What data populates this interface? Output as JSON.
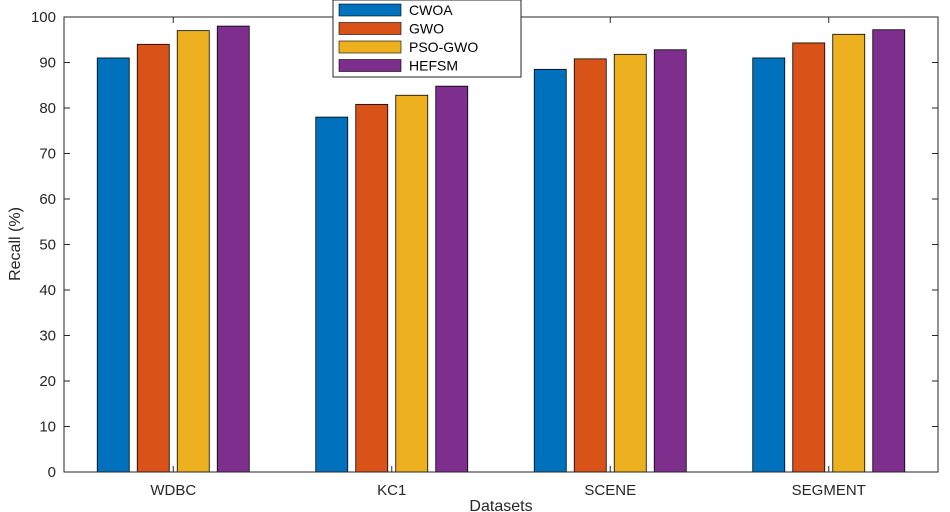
{
  "chart_data": {
    "type": "bar",
    "title": "",
    "xlabel": "Datasets",
    "ylabel": "Recall (%)",
    "ylim": [
      0,
      100
    ],
    "yticks": [
      0,
      10,
      20,
      30,
      40,
      50,
      60,
      70,
      80,
      90,
      100
    ],
    "grid": false,
    "legend_position": "top-center",
    "categories": [
      "WDBC",
      "KC1",
      "SCENE",
      "SEGMENT"
    ],
    "series": [
      {
        "name": "CWOA",
        "color": "#0072BD",
        "values": [
          91,
          78,
          88.5,
          91
        ]
      },
      {
        "name": "GWO",
        "color": "#D95319",
        "values": [
          94,
          80.8,
          90.8,
          94.3
        ]
      },
      {
        "name": "PSO-GWO",
        "color": "#EDB120",
        "values": [
          97,
          82.8,
          91.8,
          96.2
        ]
      },
      {
        "name": "HEFSM",
        "color": "#7E2F8E",
        "values": [
          98,
          84.8,
          92.8,
          97.2
        ]
      }
    ]
  }
}
